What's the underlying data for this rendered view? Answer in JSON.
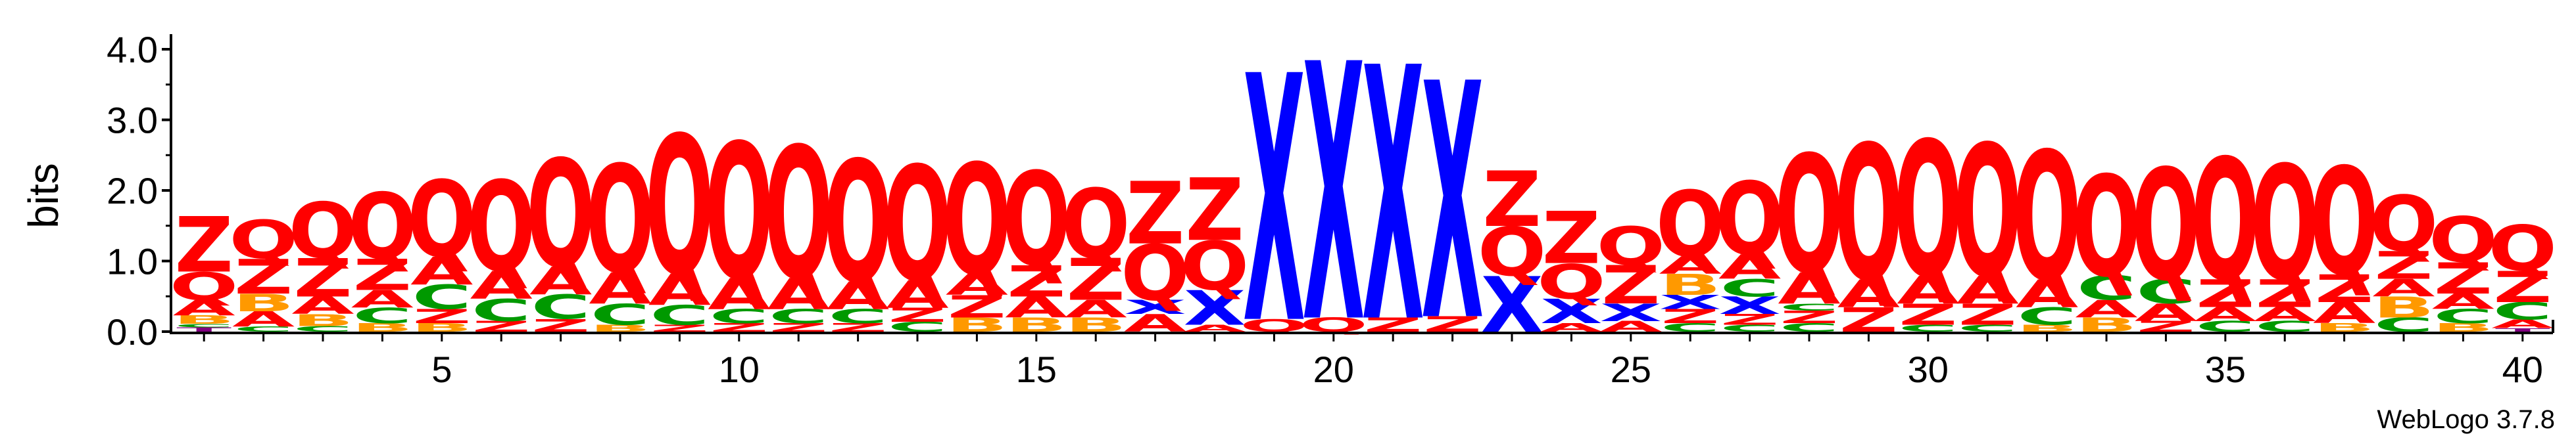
{
  "chart_data": {
    "type": "sequence-logo",
    "ylabel": "bits",
    "ylim": [
      0,
      4.0
    ],
    "yticks": [
      "0.0",
      "1.0",
      "2.0",
      "3.0",
      "4.0"
    ],
    "xticks": [
      "5",
      "10",
      "15",
      "20",
      "25",
      "30",
      "35",
      "40"
    ],
    "credit": "WebLogo 3.7.8",
    "colors": {
      "A": "#FF0000",
      "Q": "#FF0000",
      "Z": "#FF0000",
      "B": "#FF9900",
      "C": "#009900",
      "X": "#0000FF",
      "T": "#800080"
    },
    "positions": [
      {
        "pos": 1,
        "stack": [
          [
            "T",
            0.06
          ],
          [
            "C",
            0.05
          ],
          [
            "B",
            0.12
          ],
          [
            "A",
            0.22
          ],
          [
            "Q",
            0.4
          ],
          [
            "Z",
            0.8
          ]
        ]
      },
      {
        "pos": 2,
        "stack": [
          [
            "C",
            0.07
          ],
          [
            "A",
            0.22
          ],
          [
            "B",
            0.25
          ],
          [
            "Z",
            0.5
          ],
          [
            "Q",
            0.55
          ]
        ]
      },
      {
        "pos": 3,
        "stack": [
          [
            "C",
            0.08
          ],
          [
            "B",
            0.17
          ],
          [
            "A",
            0.25
          ],
          [
            "Z",
            0.55
          ],
          [
            "Q",
            0.8
          ]
        ]
      },
      {
        "pos": 4,
        "stack": [
          [
            "B",
            0.12
          ],
          [
            "C",
            0.22
          ],
          [
            "A",
            0.25
          ],
          [
            "Z",
            0.45
          ],
          [
            "Q",
            0.95
          ]
        ]
      },
      {
        "pos": 5,
        "stack": [
          [
            "B",
            0.12
          ],
          [
            "Z",
            0.2
          ],
          [
            "C",
            0.35
          ],
          [
            "A",
            0.4
          ],
          [
            "Q",
            1.1
          ]
        ]
      },
      {
        "pos": 6,
        "stack": [
          [
            "Z",
            0.15
          ],
          [
            "C",
            0.32
          ],
          [
            "A",
            0.4
          ],
          [
            "Q",
            1.3
          ]
        ]
      },
      {
        "pos": 7,
        "stack": [
          [
            "Z",
            0.18
          ],
          [
            "C",
            0.35
          ],
          [
            "A",
            0.4
          ],
          [
            "Q",
            1.55
          ]
        ]
      },
      {
        "pos": 8,
        "stack": [
          [
            "B",
            0.1
          ],
          [
            "C",
            0.3
          ],
          [
            "A",
            0.45
          ],
          [
            "Q",
            1.55
          ]
        ]
      },
      {
        "pos": 9,
        "stack": [
          [
            "Z",
            0.1
          ],
          [
            "C",
            0.28
          ],
          [
            "A",
            0.45
          ],
          [
            "Q",
            2.0
          ]
        ]
      },
      {
        "pos": 10,
        "stack": [
          [
            "Z",
            0.12
          ],
          [
            "C",
            0.2
          ],
          [
            "A",
            0.45
          ],
          [
            "Q",
            1.95
          ]
        ]
      },
      {
        "pos": 11,
        "stack": [
          [
            "Z",
            0.12
          ],
          [
            "C",
            0.2
          ],
          [
            "A",
            0.45
          ],
          [
            "Q",
            1.9
          ]
        ]
      },
      {
        "pos": 12,
        "stack": [
          [
            "Z",
            0.12
          ],
          [
            "C",
            0.2
          ],
          [
            "A",
            0.4
          ],
          [
            "Q",
            1.75
          ]
        ]
      },
      {
        "pos": 13,
        "stack": [
          [
            "C",
            0.14
          ],
          [
            "Z",
            0.2
          ],
          [
            "A",
            0.4
          ],
          [
            "Q",
            1.65
          ]
        ]
      },
      {
        "pos": 14,
        "stack": [
          [
            "B",
            0.2
          ],
          [
            "Z",
            0.32
          ],
          [
            "A",
            0.3
          ],
          [
            "Q",
            1.6
          ]
        ]
      },
      {
        "pos": 15,
        "stack": [
          [
            "B",
            0.2
          ],
          [
            "A",
            0.3
          ],
          [
            "Z",
            0.45
          ],
          [
            "Q",
            1.35
          ]
        ]
      },
      {
        "pos": 16,
        "stack": [
          [
            "B",
            0.2
          ],
          [
            "A",
            0.25
          ],
          [
            "Z",
            0.6
          ],
          [
            "Q",
            1.0
          ]
        ]
      },
      {
        "pos": 17,
        "stack": [
          [
            "A",
            0.25
          ],
          [
            "X",
            0.2
          ],
          [
            "Q",
            0.8
          ],
          [
            "Z",
            0.9
          ]
        ]
      },
      {
        "pos": 18,
        "stack": [
          [
            "A",
            0.1
          ],
          [
            "X",
            0.5
          ],
          [
            "Q",
            0.7
          ],
          [
            "Z",
            0.9
          ]
        ]
      },
      {
        "pos": 19,
        "stack": [
          [
            "Q",
            0.18
          ],
          [
            "X",
            3.55
          ]
        ]
      },
      {
        "pos": 20,
        "stack": [
          [
            "Q",
            0.2
          ],
          [
            "X",
            3.7
          ]
        ]
      },
      {
        "pos": 21,
        "stack": [
          [
            "Z",
            0.2
          ],
          [
            "X",
            3.65
          ]
        ]
      },
      {
        "pos": 22,
        "stack": [
          [
            "Z",
            0.22
          ],
          [
            "X",
            3.4
          ]
        ]
      },
      {
        "pos": 23,
        "stack": [
          [
            "X",
            0.8
          ],
          [
            "Q",
            0.7
          ],
          [
            "Z",
            0.8
          ]
        ]
      },
      {
        "pos": 24,
        "stack": [
          [
            "A",
            0.12
          ],
          [
            "X",
            0.35
          ],
          [
            "Q",
            0.5
          ],
          [
            "Z",
            0.75
          ]
        ]
      },
      {
        "pos": 25,
        "stack": [
          [
            "A",
            0.15
          ],
          [
            "X",
            0.25
          ],
          [
            "Z",
            0.55
          ],
          [
            "Q",
            0.55
          ]
        ]
      },
      {
        "pos": 26,
        "stack": [
          [
            "C",
            0.12
          ],
          [
            "Z",
            0.2
          ],
          [
            "X",
            0.2
          ],
          [
            "B",
            0.3
          ],
          [
            "A",
            0.25
          ],
          [
            "Q",
            0.95
          ]
        ]
      },
      {
        "pos": 27,
        "stack": [
          [
            "C",
            0.1
          ],
          [
            "Z",
            0.15
          ],
          [
            "X",
            0.25
          ],
          [
            "C",
            0.25
          ],
          [
            "A",
            0.35
          ],
          [
            "Q",
            1.05
          ]
        ]
      },
      {
        "pos": 28,
        "stack": [
          [
            "C",
            0.12
          ],
          [
            "Z",
            0.18
          ],
          [
            "C",
            0.1
          ],
          [
            "A",
            0.45
          ],
          [
            "Q",
            1.7
          ]
        ]
      },
      {
        "pos": 29,
        "stack": [
          [
            "Z",
            0.35
          ],
          [
            "A",
            0.4
          ],
          [
            "Q",
            1.95
          ]
        ]
      },
      {
        "pos": 30,
        "stack": [
          [
            "C",
            0.1
          ],
          [
            "Z",
            0.3
          ],
          [
            "A",
            0.4
          ],
          [
            "Q",
            1.95
          ]
        ]
      },
      {
        "pos": 31,
        "stack": [
          [
            "C",
            0.1
          ],
          [
            "Z",
            0.3
          ],
          [
            "A",
            0.4
          ],
          [
            "Q",
            1.9
          ]
        ]
      },
      {
        "pos": 32,
        "stack": [
          [
            "B",
            0.1
          ],
          [
            "C",
            0.25
          ],
          [
            "A",
            0.4
          ],
          [
            "Q",
            1.85
          ]
        ]
      },
      {
        "pos": 33,
        "stack": [
          [
            "B",
            0.2
          ],
          [
            "A",
            0.25
          ],
          [
            "C",
            0.35
          ],
          [
            "Q",
            1.45
          ]
        ]
      },
      {
        "pos": 34,
        "stack": [
          [
            "Z",
            0.15
          ],
          [
            "A",
            0.25
          ],
          [
            "C",
            0.35
          ],
          [
            "Q",
            1.6
          ]
        ]
      },
      {
        "pos": 35,
        "stack": [
          [
            "C",
            0.15
          ],
          [
            "A",
            0.2
          ],
          [
            "Z",
            0.4
          ],
          [
            "Q",
            1.75
          ]
        ]
      },
      {
        "pos": 36,
        "stack": [
          [
            "C",
            0.15
          ],
          [
            "A",
            0.2
          ],
          [
            "Z",
            0.4
          ],
          [
            "Q",
            1.65
          ]
        ]
      },
      {
        "pos": 37,
        "stack": [
          [
            "B",
            0.12
          ],
          [
            "A",
            0.3
          ],
          [
            "Z",
            0.4
          ],
          [
            "Q",
            1.55
          ]
        ]
      },
      {
        "pos": 38,
        "stack": [
          [
            "C",
            0.2
          ],
          [
            "B",
            0.3
          ],
          [
            "A",
            0.25
          ],
          [
            "Z",
            0.4
          ],
          [
            "Q",
            0.8
          ]
        ]
      },
      {
        "pos": 39,
        "stack": [
          [
            "B",
            0.12
          ],
          [
            "C",
            0.2
          ],
          [
            "A",
            0.22
          ],
          [
            "Z",
            0.45
          ],
          [
            "Q",
            0.65
          ]
        ]
      },
      {
        "pos": 40,
        "stack": [
          [
            "T",
            0.05
          ],
          [
            "A",
            0.12
          ],
          [
            "C",
            0.25
          ],
          [
            "Z",
            0.45
          ],
          [
            "Q",
            0.65
          ]
        ]
      }
    ]
  }
}
